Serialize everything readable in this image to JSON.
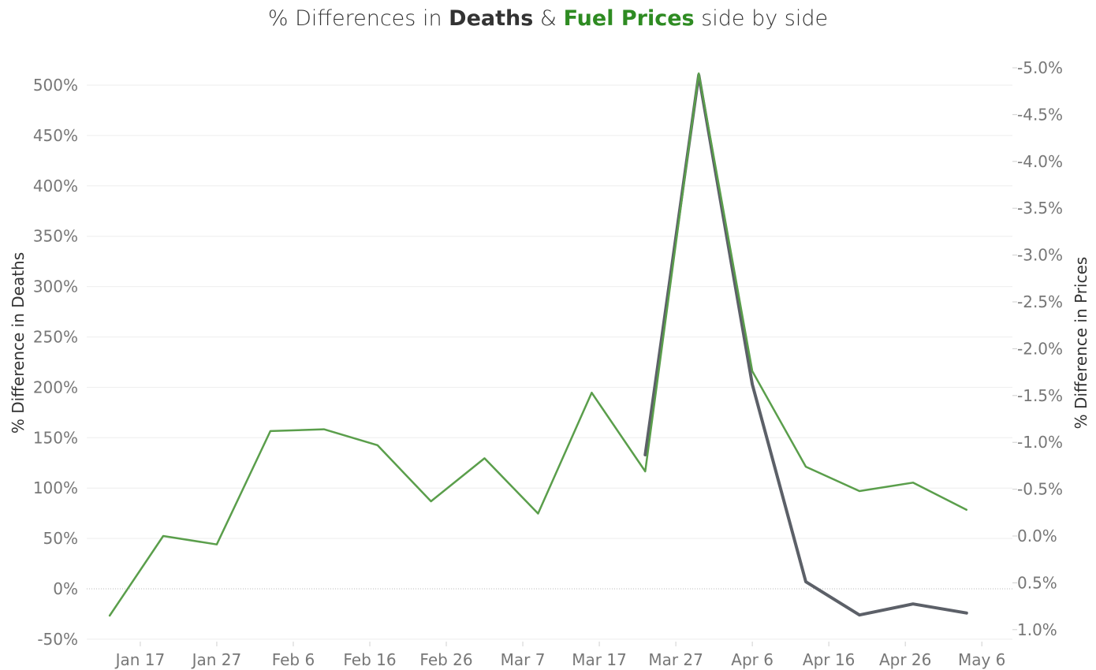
{
  "chart_data": {
    "type": "line",
    "title": {
      "pre": "% Differences in",
      "deaths": "Deaths",
      "amp": "&",
      "fuel": "Fuel Prices",
      "post": "side by side"
    },
    "colors": {
      "deaths": "#5c6068",
      "fuel": "#5a9e4b",
      "title_green": "#2e8b22"
    },
    "y_left": {
      "label": "% Difference in Deaths",
      "range": [
        -0.55,
        5.15
      ],
      "ticks": [
        5.0,
        4.5,
        4.0,
        3.5,
        3.0,
        2.5,
        2.0,
        1.5,
        1.0,
        0.5,
        0.0,
        -0.5
      ],
      "tick_labels": [
        "500%",
        "450%",
        "400%",
        "350%",
        "300%",
        "250%",
        "200%",
        "150%",
        "100%",
        "50%",
        "0%",
        "-50%"
      ]
    },
    "y_right": {
      "label": "% Difference in Prices",
      "reversed": true,
      "range": [
        -5.0,
        1.0
      ],
      "ticks": [
        -5.0,
        -4.5,
        -4.0,
        -3.5,
        -3.0,
        -2.5,
        -2.0,
        -1.5,
        -1.0,
        -0.5,
        0.0,
        0.5,
        1.0
      ],
      "tick_labels": [
        "-5.0%",
        "-4.5%",
        "-4.0%",
        "-3.5%",
        "-3.0%",
        "-2.5%",
        "-2.0%",
        "-1.5%",
        "-1.0%",
        "-0.5%",
        "0.0%",
        "0.5%",
        "1.0%"
      ]
    },
    "x_axis": {
      "range": [
        "2020-01-10",
        "2020-05-10"
      ],
      "ticks": [
        "2020-01-17",
        "2020-01-27",
        "2020-02-06",
        "2020-02-16",
        "2020-02-26",
        "2020-03-07",
        "2020-03-17",
        "2020-03-27",
        "2020-04-06",
        "2020-04-16",
        "2020-04-26",
        "2020-05-06"
      ],
      "tick_labels": [
        "Jan 17",
        "Jan 27",
        "Feb 6",
        "Feb 16",
        "Feb 26",
        "Mar 7",
        "Mar 17",
        "Mar 27",
        "Apr 6",
        "Apr 16",
        "Apr 26",
        "May 6"
      ]
    },
    "series": [
      {
        "key": "fuel",
        "axis": "right",
        "x": [
          "2020-01-13",
          "2020-01-20",
          "2020-01-27",
          "2020-02-03",
          "2020-02-10",
          "2020-02-17",
          "2020-02-24",
          "2020-03-02",
          "2020-03-09",
          "2020-03-16",
          "2020-03-23",
          "2020-03-30",
          "2020-04-06",
          "2020-04-13",
          "2020-04-20",
          "2020-04-27",
          "2020-05-04"
        ],
        "values": [
          0.85,
          0.0,
          0.09,
          -1.12,
          -1.14,
          -0.97,
          -0.37,
          -0.83,
          -0.24,
          -1.53,
          -0.69,
          -4.94,
          -1.76,
          -0.74,
          -0.48,
          -0.57,
          -0.28
        ]
      },
      {
        "key": "deaths",
        "axis": "left",
        "x": [
          "2020-03-23",
          "2020-03-30",
          "2020-04-06",
          "2020-04-13",
          "2020-04-20",
          "2020-04-27",
          "2020-05-04"
        ],
        "values": [
          1.33,
          5.1,
          2.03,
          0.07,
          -0.26,
          -0.15,
          -0.24
        ]
      }
    ]
  }
}
